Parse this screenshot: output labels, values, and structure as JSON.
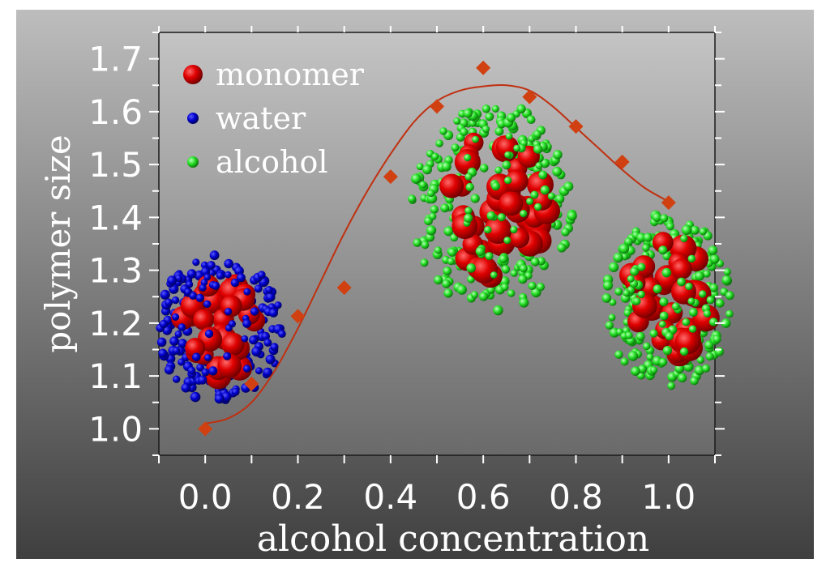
{
  "chart_data": {
    "type": "scatter",
    "xlabel": "alcohol concentration",
    "ylabel": "polymer size",
    "xlim": [
      -0.1,
      1.1
    ],
    "ylim": [
      0.95,
      1.75
    ],
    "xticks": [
      "0.0",
      "0.2",
      "0.4",
      "0.6",
      "0.8",
      "1.0"
    ],
    "yticks": [
      "1.0",
      "1.1",
      "1.2",
      "1.3",
      "1.4",
      "1.5",
      "1.6",
      "1.7"
    ],
    "legend": {
      "placement": "top-left",
      "entries": [
        {
          "label": "monomer",
          "color": "#e00000"
        },
        {
          "label": "water",
          "color": "#0000cc"
        },
        {
          "label": "alcohol",
          "color": "#22dd22"
        }
      ]
    },
    "series": [
      {
        "marker": "diamond",
        "color": "#d04010",
        "x": [
          0.0,
          0.1,
          0.2,
          0.3,
          0.4,
          0.5,
          0.6,
          0.7,
          0.8,
          0.9,
          1.0
        ],
        "y": [
          1.0,
          1.085,
          1.213,
          1.267,
          1.477,
          1.61,
          1.683,
          1.628,
          1.572,
          1.505,
          1.428
        ]
      }
    ],
    "fit_curve": {
      "color": "#c03010",
      "x": [
        0.0,
        0.05,
        0.1,
        0.15,
        0.2,
        0.25,
        0.3,
        0.35,
        0.4,
        0.45,
        0.5,
        0.55,
        0.6,
        0.65,
        0.7,
        0.75,
        0.8,
        0.85,
        0.9,
        0.95,
        1.0
      ],
      "y": [
        1.01,
        1.02,
        1.05,
        1.11,
        1.19,
        1.28,
        1.37,
        1.45,
        1.52,
        1.58,
        1.62,
        1.64,
        1.648,
        1.65,
        1.64,
        1.61,
        1.57,
        1.53,
        1.49,
        1.455,
        1.43
      ]
    },
    "clusters": [
      {
        "name": "water-cluster",
        "center_x": 0.03,
        "center_y": 1.19,
        "solvent_color": "#0000cc",
        "monomer_color": "#e00000"
      },
      {
        "name": "mixed-cluster",
        "center_x": 0.62,
        "center_y": 1.42,
        "solvent_color": "#22dd22",
        "monomer_color": "#e00000"
      },
      {
        "name": "alcohol-cluster",
        "center_x": 1.0,
        "center_y": 1.24,
        "solvent_color": "#22dd22",
        "monomer_color": "#e00000"
      }
    ]
  }
}
